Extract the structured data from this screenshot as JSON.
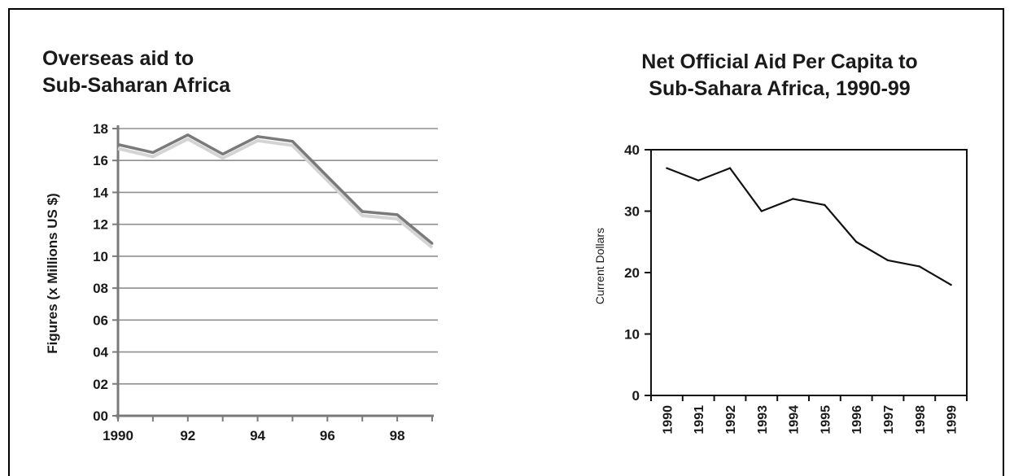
{
  "chart_data": [
    {
      "type": "line",
      "title_lines": [
        "Overseas aid to",
        "Sub-Saharan Africa"
      ],
      "xlabel": "",
      "ylabel": "Figures (x Millions US $)",
      "x": [
        1990,
        1991,
        1992,
        1993,
        1994,
        1995,
        1996,
        1997,
        1998,
        1999
      ],
      "xtick_values": [
        1990,
        1992,
        1994,
        1996,
        1998
      ],
      "xtick_labels": [
        "1990",
        "92",
        "94",
        "96",
        "98"
      ],
      "ytick_values": [
        0,
        2,
        4,
        6,
        8,
        10,
        12,
        14,
        16,
        18
      ],
      "ytick_labels": [
        "00",
        "02",
        "04",
        "06",
        "08",
        "10",
        "12",
        "14",
        "16",
        "18"
      ],
      "ylim": [
        0,
        18
      ],
      "grid": true,
      "series": [
        {
          "values": [
            17.0,
            16.5,
            17.6,
            16.4,
            17.5,
            17.2,
            15.0,
            12.8,
            12.6,
            10.8
          ]
        }
      ],
      "colors": {
        "line": "#7a7a7a",
        "shadow": "#d4d4d4",
        "grid": "#8f8f8f"
      }
    },
    {
      "type": "line",
      "title_lines": [
        "Net Official Aid Per Capita to",
        "Sub-Sahara Africa, 1990-99"
      ],
      "xlabel": "",
      "ylabel": "Current Dollars",
      "categories": [
        "1990",
        "1991",
        "1992",
        "1993",
        "1994",
        "1995",
        "1996",
        "1997",
        "1998",
        "1999"
      ],
      "ytick_values": [
        0,
        10,
        20,
        30,
        40
      ],
      "ytick_labels": [
        "0",
        "10",
        "20",
        "30",
        "40"
      ],
      "ylim": [
        0,
        40
      ],
      "grid": false,
      "series": [
        {
          "values": [
            37,
            35,
            37,
            30,
            32,
            31,
            25,
            22,
            21,
            18
          ]
        }
      ],
      "colors": {
        "line": "#111111"
      }
    }
  ]
}
